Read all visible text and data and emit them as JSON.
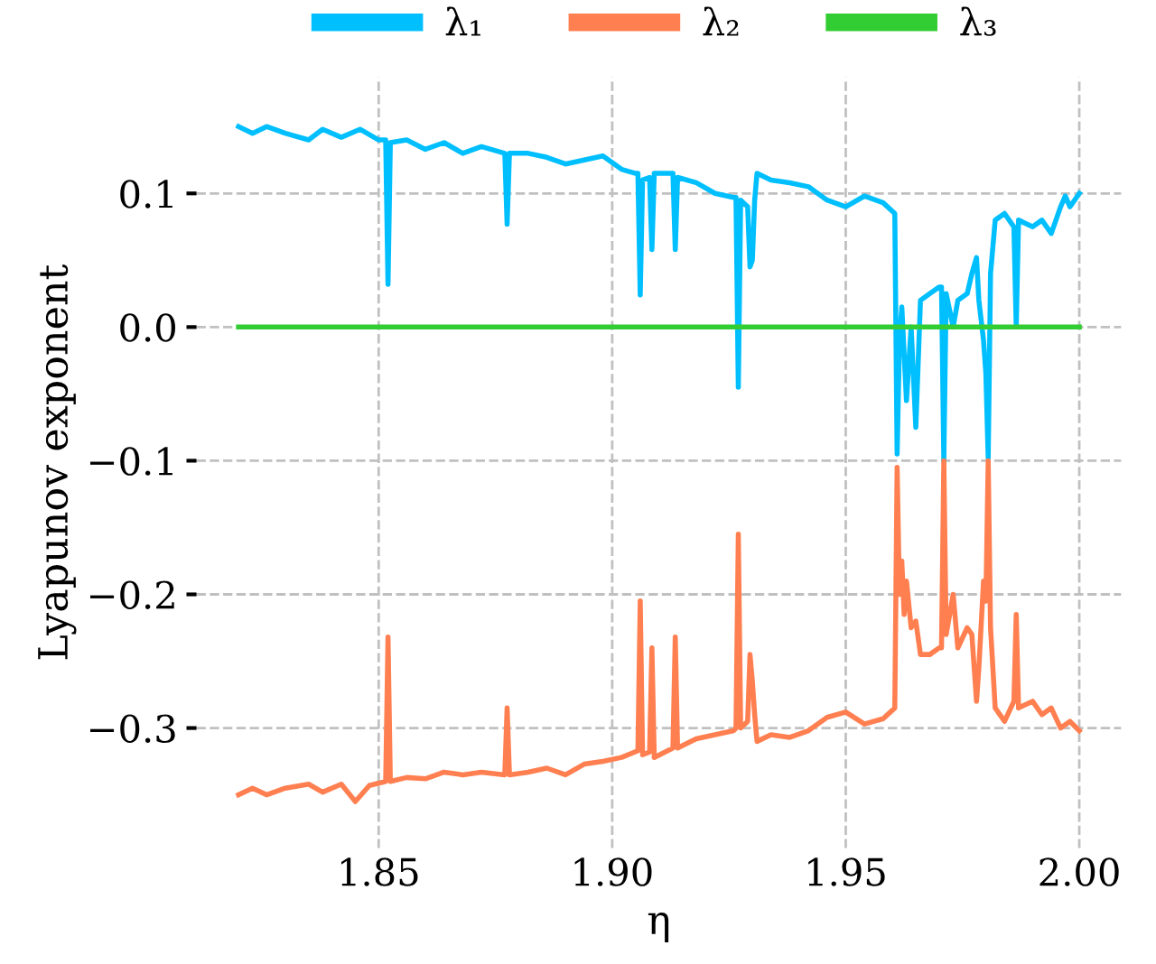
{
  "chart_data": {
    "type": "line",
    "xlabel": "η",
    "ylabel": "Lyapunov exponent",
    "xlim": [
      1.811,
      2.009
    ],
    "ylim": [
      -0.39,
      0.187
    ],
    "xticks": [
      {
        "value": 1.85,
        "label": "1.85"
      },
      {
        "value": 1.9,
        "label": "1.90"
      },
      {
        "value": 1.95,
        "label": "1.95"
      },
      {
        "value": 2.0,
        "label": "2.00"
      }
    ],
    "yticks": [
      {
        "value": 0.1,
        "label": "0.1"
      },
      {
        "value": 0.0,
        "label": "0.0"
      },
      {
        "value": -0.1,
        "label": "−0.1"
      },
      {
        "value": -0.2,
        "label": "−0.2"
      },
      {
        "value": -0.3,
        "label": "−0.3"
      }
    ],
    "grid": true,
    "legend": "top",
    "marker": "none",
    "line_style": "solid",
    "series": [
      {
        "name": "λ₁",
        "color": "#00bfff",
        "x": [
          1.82,
          1.823,
          1.826,
          1.83,
          1.835,
          1.838,
          1.842,
          1.846,
          1.85,
          1.8515,
          1.852,
          1.8525,
          1.856,
          1.86,
          1.864,
          1.868,
          1.872,
          1.877,
          1.8775,
          1.878,
          1.882,
          1.886,
          1.89,
          1.894,
          1.898,
          1.902,
          1.905,
          1.9055,
          1.906,
          1.9065,
          1.908,
          1.9085,
          1.909,
          1.913,
          1.9135,
          1.914,
          1.918,
          1.922,
          1.926,
          1.9265,
          1.927,
          1.9275,
          1.929,
          1.9295,
          1.93,
          1.9305,
          1.931,
          1.934,
          1.938,
          1.942,
          1.946,
          1.95,
          1.954,
          1.958,
          1.9605,
          1.961,
          1.9615,
          1.962,
          1.9625,
          1.963,
          1.964,
          1.965,
          1.966,
          1.968,
          1.97,
          1.9705,
          1.971,
          1.9715,
          1.973,
          1.974,
          1.976,
          1.977,
          1.978,
          1.9785,
          1.9795,
          1.98,
          1.9805,
          1.981,
          1.982,
          1.984,
          1.986,
          1.9865,
          1.987,
          1.99,
          1.992,
          1.994,
          1.996,
          1.997,
          1.998,
          2.0
        ],
        "values": [
          0.15,
          0.145,
          0.15,
          0.145,
          0.14,
          0.148,
          0.142,
          0.148,
          0.14,
          0.14,
          0.032,
          0.138,
          0.14,
          0.133,
          0.138,
          0.13,
          0.135,
          0.13,
          0.077,
          0.13,
          0.13,
          0.127,
          0.122,
          0.125,
          0.128,
          0.118,
          0.115,
          0.115,
          0.024,
          0.11,
          0.112,
          0.058,
          0.115,
          0.115,
          0.058,
          0.112,
          0.108,
          0.1,
          0.097,
          0.097,
          -0.045,
          0.095,
          0.09,
          0.045,
          0.05,
          0.095,
          0.115,
          0.11,
          0.108,
          0.105,
          0.095,
          0.09,
          0.098,
          0.093,
          0.085,
          -0.095,
          -0.01,
          0.015,
          -0.02,
          -0.055,
          0.0,
          -0.075,
          0.02,
          0.025,
          0.03,
          0.03,
          -0.1,
          0.025,
          0.0,
          0.02,
          0.025,
          0.04,
          0.052,
          0.02,
          -0.01,
          -0.035,
          -0.098,
          0.04,
          0.08,
          0.085,
          0.075,
          0.0,
          0.08,
          0.075,
          0.08,
          0.07,
          0.09,
          0.098,
          0.09,
          0.1
        ]
      },
      {
        "name": "λ₂",
        "color": "#ff7f50",
        "x": [
          1.82,
          1.823,
          1.826,
          1.83,
          1.835,
          1.838,
          1.842,
          1.845,
          1.848,
          1.8515,
          1.852,
          1.8525,
          1.856,
          1.86,
          1.864,
          1.868,
          1.872,
          1.877,
          1.8775,
          1.878,
          1.882,
          1.886,
          1.89,
          1.894,
          1.898,
          1.902,
          1.9055,
          1.906,
          1.9065,
          1.908,
          1.9085,
          1.909,
          1.913,
          1.9135,
          1.914,
          1.918,
          1.922,
          1.926,
          1.9265,
          1.927,
          1.9275,
          1.929,
          1.9295,
          1.93,
          1.9305,
          1.931,
          1.934,
          1.938,
          1.942,
          1.946,
          1.95,
          1.954,
          1.958,
          1.9605,
          1.961,
          1.9615,
          1.962,
          1.9625,
          1.963,
          1.964,
          1.965,
          1.966,
          1.968,
          1.97,
          1.9705,
          1.971,
          1.9715,
          1.973,
          1.974,
          1.976,
          1.977,
          1.978,
          1.9785,
          1.9795,
          1.98,
          1.9805,
          1.981,
          1.982,
          1.984,
          1.986,
          1.9865,
          1.987,
          1.99,
          1.992,
          1.994,
          1.996,
          1.998,
          2.0
        ],
        "values": [
          -0.35,
          -0.345,
          -0.35,
          -0.345,
          -0.342,
          -0.348,
          -0.342,
          -0.355,
          -0.343,
          -0.34,
          -0.232,
          -0.34,
          -0.337,
          -0.338,
          -0.333,
          -0.335,
          -0.333,
          -0.335,
          -0.285,
          -0.335,
          -0.333,
          -0.33,
          -0.335,
          -0.327,
          -0.325,
          -0.322,
          -0.317,
          -0.205,
          -0.32,
          -0.318,
          -0.24,
          -0.322,
          -0.315,
          -0.232,
          -0.315,
          -0.308,
          -0.305,
          -0.302,
          -0.3,
          -0.155,
          -0.3,
          -0.295,
          -0.245,
          -0.265,
          -0.29,
          -0.31,
          -0.305,
          -0.307,
          -0.302,
          -0.292,
          -0.288,
          -0.297,
          -0.293,
          -0.285,
          -0.105,
          -0.2,
          -0.175,
          -0.215,
          -0.19,
          -0.225,
          -0.22,
          -0.245,
          -0.245,
          -0.24,
          -0.24,
          -0.1,
          -0.23,
          -0.2,
          -0.24,
          -0.225,
          -0.23,
          -0.28,
          -0.255,
          -0.19,
          -0.205,
          -0.1,
          -0.225,
          -0.285,
          -0.295,
          -0.28,
          -0.215,
          -0.285,
          -0.28,
          -0.29,
          -0.285,
          -0.3,
          -0.295,
          -0.302
        ]
      },
      {
        "name": "λ₃",
        "color": "#32cd32",
        "x": [
          1.82,
          2.0
        ],
        "values": [
          0.0,
          0.0
        ]
      }
    ]
  }
}
